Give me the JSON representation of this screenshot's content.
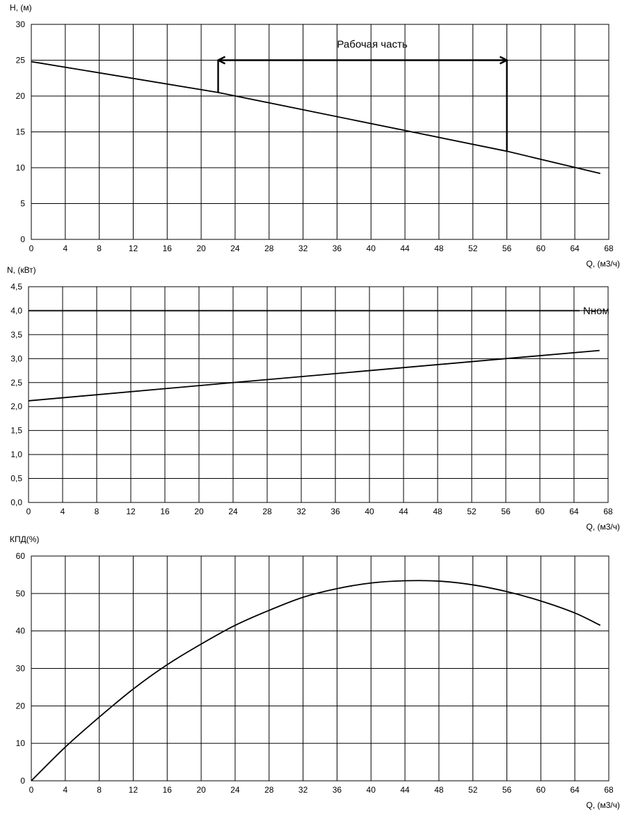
{
  "chart_data": [
    {
      "id": "head",
      "type": "line",
      "ylabel": "H, (м)",
      "xlabel": "Q, (м3/ч)",
      "xlim": [
        0,
        68
      ],
      "ylim": [
        0,
        30
      ],
      "xticks": [
        0,
        4,
        8,
        12,
        16,
        20,
        24,
        28,
        32,
        36,
        40,
        44,
        48,
        52,
        56,
        60,
        64,
        68
      ],
      "yticks": [
        0,
        5,
        10,
        15,
        20,
        25,
        30
      ],
      "ytick_labels": [
        "0",
        "5",
        "10",
        "15",
        "20",
        "25",
        "30"
      ],
      "grid": true,
      "series": [
        {
          "x": [
            0,
            22,
            56,
            67
          ],
          "y": [
            24.8,
            20.5,
            12.3,
            9.2
          ]
        }
      ],
      "annotations": [
        {
          "text": "Рабочая часть",
          "q_start": 22,
          "q_end": 56,
          "level": 25
        }
      ]
    },
    {
      "id": "power",
      "type": "line",
      "ylabel": "N, (кВт)",
      "xlabel": "Q, (м3/ч)",
      "xlim": [
        0,
        68
      ],
      "ylim": [
        0,
        4.5
      ],
      "xticks": [
        0,
        4,
        8,
        12,
        16,
        20,
        24,
        28,
        32,
        36,
        40,
        44,
        48,
        52,
        56,
        60,
        64,
        68
      ],
      "yticks": [
        0,
        0.5,
        1,
        1.5,
        2,
        2.5,
        3,
        3.5,
        4,
        4.5
      ],
      "ytick_labels": [
        "0,0",
        "0,5",
        "1,0",
        "1,5",
        "2,0",
        "2,5",
        "3,0",
        "3,5",
        "4,0",
        "4,5"
      ],
      "grid": true,
      "series": [
        {
          "x": [
            0,
            24,
            56,
            67
          ],
          "y": [
            2.12,
            2.5,
            3.0,
            3.17
          ]
        }
      ],
      "reference_line": {
        "label": "Nном",
        "value": 4.0,
        "x_end": 64
      }
    },
    {
      "id": "efficiency",
      "type": "line",
      "ylabel": "КПД(%)",
      "xlabel": "Q, (м3/ч)",
      "xlim": [
        0,
        68
      ],
      "ylim": [
        0,
        60
      ],
      "xticks": [
        0,
        4,
        8,
        12,
        16,
        20,
        24,
        28,
        32,
        36,
        40,
        44,
        48,
        52,
        56,
        60,
        64,
        68
      ],
      "yticks": [
        0,
        10,
        20,
        30,
        40,
        50,
        60
      ],
      "ytick_labels": [
        "0",
        "10",
        "20",
        "30",
        "40",
        "50",
        "60"
      ],
      "grid": true,
      "series": [
        {
          "x": [
            0,
            4,
            8,
            12,
            16,
            20,
            24,
            28,
            32,
            36,
            40,
            44,
            48,
            52,
            56,
            60,
            64,
            67
          ],
          "y": [
            0,
            9,
            17,
            24.5,
            31,
            36.5,
            41.5,
            45.5,
            49,
            51.3,
            52.8,
            53.4,
            53.3,
            52.3,
            50.5,
            48,
            44.8,
            41.5
          ]
        }
      ]
    }
  ]
}
